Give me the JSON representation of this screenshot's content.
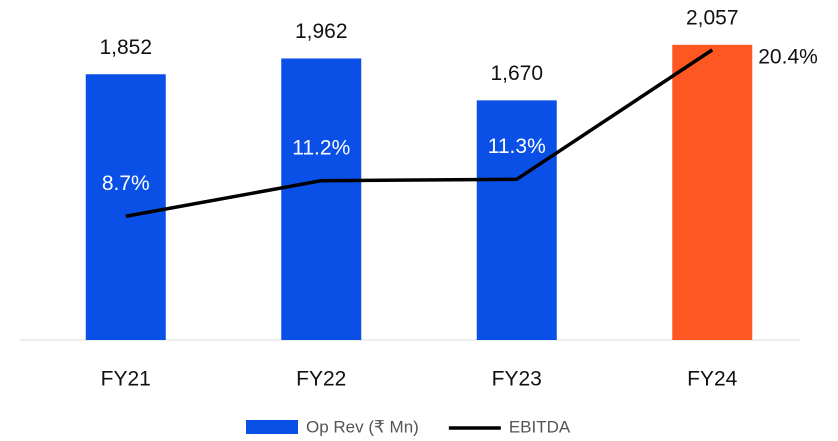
{
  "chart_data": {
    "type": "bar_line",
    "categories": [
      "FY21",
      "FY22",
      "FY23",
      "FY24"
    ],
    "series": [
      {
        "name": "Op Rev (₹ Mn)",
        "type": "bar",
        "color": "#0a4fe6",
        "colors": [
          "#0a4fe6",
          "#0a4fe6",
          "#0a4fe6",
          "#ff5722"
        ],
        "values": [
          1852,
          1962,
          1670,
          2057
        ],
        "value_labels": [
          "1,852",
          "1,962",
          "1,670",
          "2,057"
        ]
      },
      {
        "name": "EBITDA",
        "type": "line",
        "axis": "y2",
        "color": "#000000",
        "values": [
          8.7,
          11.2,
          11.3,
          20.4
        ],
        "value_labels": [
          "8.7%",
          "11.2%",
          "11.3%",
          "20.4%"
        ]
      }
    ],
    "ylim": [
      0,
      2230
    ],
    "y2lim": [
      0,
      22.5
    ],
    "grid": false,
    "legend": "bottom"
  }
}
